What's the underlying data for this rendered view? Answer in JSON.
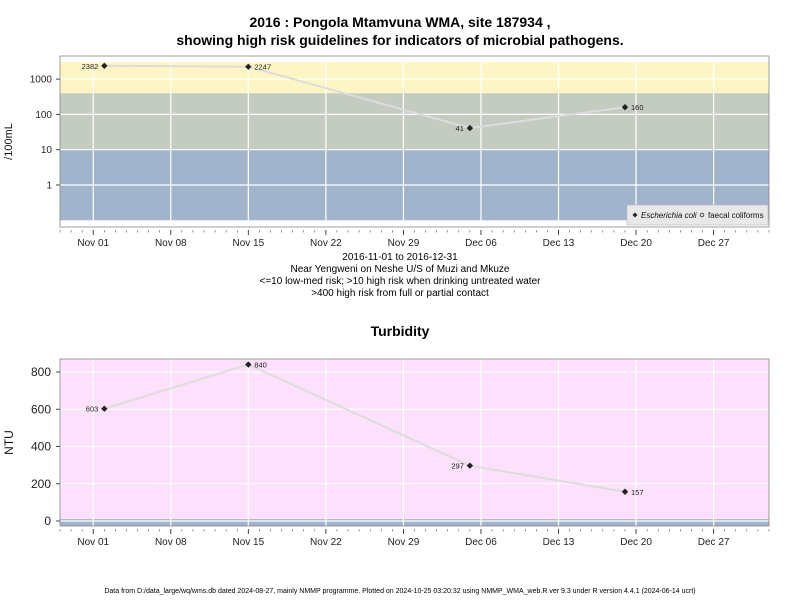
{
  "header": {
    "title_line1": "2016 : Pongola Mtamvuna WMA, site 187934 ,",
    "title_line2": "showing high risk guidelines for indicators of microbial pathogens."
  },
  "notes": {
    "date_range": "2016-11-01 to 2016-12-31",
    "location": "Near Yengweni on Neshe U/S of Muzi and Mkuze",
    "risk_line1": "<=10 low-med risk; >10 high risk when drinking untreated water",
    "risk_line2": ">400 high risk from full or partial contact"
  },
  "footer": {
    "text": "Data from D:/data_large/wq/wms.db dated 2024-08-27, mainly NMMP programme. Plotted on 2024-10-25 03:20:32 using NMMP_WMA_web.R ver 9.3 under R version 4.4.1 (2024-06-14 ucrt)"
  },
  "colors": {
    "zone_low": "#a2b4cb",
    "zone_medium": "#c4ccc2",
    "zone_high": "#fdf6c4",
    "turbidity_bg": "#fde0fb",
    "turbidity_base": "#a2b4cb",
    "grid": "#ffffff",
    "line": "#dcdcdc",
    "marker": "#222222"
  },
  "chart_data": [
    {
      "type": "scatter",
      "title": "",
      "ylabel": "/100mL",
      "xlabel": "",
      "y_scale": "log",
      "y_ticks": [
        1,
        10,
        100,
        1000
      ],
      "y_tick_labels": [
        "1",
        "10",
        "100",
        "1000"
      ],
      "xlim": [
        "2016-10-29",
        "2017-01-01"
      ],
      "x_ticks": [
        "2016-11-01",
        "2016-11-08",
        "2016-11-15",
        "2016-11-22",
        "2016-11-29",
        "2016-12-06",
        "2016-12-13",
        "2016-12-20",
        "2016-12-27"
      ],
      "x_tick_labels": [
        "Nov 01",
        "Nov 08",
        "Nov 15",
        "Nov 22",
        "Nov 29",
        "Dec 06",
        "Dec 13",
        "Dec 20",
        "Dec 27"
      ],
      "zones": [
        {
          "from": 0.1,
          "to": 10,
          "color": "#a2b4cb"
        },
        {
          "from": 10,
          "to": 400,
          "color": "#c4ccc2"
        },
        {
          "from": 400,
          "to": 3000,
          "color": "#fdf6c4"
        }
      ],
      "legend": {
        "position": "bottom-right",
        "entries": [
          "Escherichia coli",
          "faecal coliforms"
        ]
      },
      "series": [
        {
          "name": "Escherichia coli",
          "x": [
            "2016-11-02",
            "2016-11-15",
            "2016-12-05",
            "2016-12-19"
          ],
          "y": [
            2382,
            2247,
            41,
            160
          ],
          "labels": [
            "2382",
            "2247",
            "41",
            "160"
          ],
          "label_side": [
            "left",
            "right",
            "left",
            "right"
          ]
        }
      ],
      "grid": true
    },
    {
      "type": "line",
      "title": "Turbidity",
      "ylabel": "NTU",
      "xlabel": "",
      "ylim": [
        -30,
        860
      ],
      "y_ticks": [
        0,
        200,
        400,
        600,
        800
      ],
      "y_tick_labels": [
        "0",
        "200",
        "400",
        "600",
        "800"
      ],
      "xlim": [
        "2016-10-29",
        "2017-01-01"
      ],
      "x_ticks": [
        "2016-11-01",
        "2016-11-08",
        "2016-11-15",
        "2016-11-22",
        "2016-11-29",
        "2016-12-06",
        "2016-12-13",
        "2016-12-20",
        "2016-12-27"
      ],
      "x_tick_labels": [
        "Nov 01",
        "Nov 08",
        "Nov 15",
        "Nov 22",
        "Nov 29",
        "Dec 06",
        "Dec 13",
        "Dec 20",
        "Dec 27"
      ],
      "series": [
        {
          "x": [
            "2016-11-02",
            "2016-11-15",
            "2016-12-05",
            "2016-12-19"
          ],
          "y": [
            603,
            840,
            297,
            157
          ],
          "labels": [
            "603",
            "840",
            "297",
            "157"
          ],
          "label_side": [
            "left",
            "right",
            "left",
            "right"
          ]
        }
      ],
      "grid": true
    }
  ]
}
